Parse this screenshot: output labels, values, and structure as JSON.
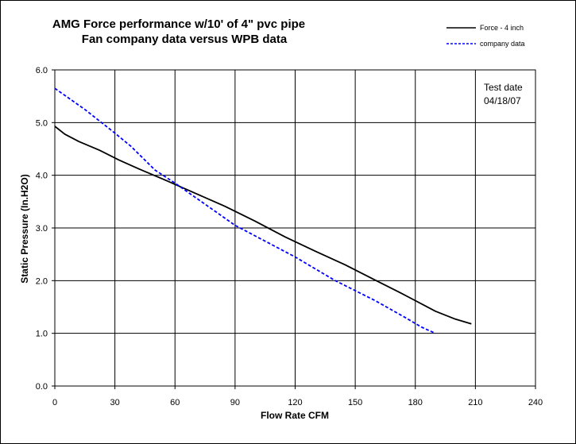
{
  "chart_data": {
    "type": "line",
    "title": [
      "AMG Force performance w/10' of 4\" pvc pipe",
      "Fan company data versus WPB data"
    ],
    "xlabel": "Flow Rate  CFM",
    "ylabel": "Static Pressure  (In.H2O)",
    "xlim": [
      0,
      240
    ],
    "ylim": [
      0,
      6
    ],
    "xticks": [
      "0",
      "30",
      "60",
      "90",
      "120",
      "150",
      "180",
      "210",
      "240"
    ],
    "yticks": [
      "0.0",
      "1.0",
      "2.0",
      "3.0",
      "4.0",
      "5.0",
      "6.0"
    ],
    "grid": true,
    "legend_position": "top-right",
    "annotation": [
      "Test date",
      "04/18/07"
    ],
    "series": [
      {
        "name": "Force - 4 inch",
        "style": "solid",
        "color": "#000000",
        "x": [
          0,
          5,
          12,
          22,
          32,
          42,
          55,
          70,
          85,
          100,
          115,
          130,
          145,
          160,
          172,
          180,
          190,
          200,
          208
        ],
        "y": [
          4.93,
          4.78,
          4.64,
          4.48,
          4.29,
          4.12,
          3.91,
          3.66,
          3.41,
          3.13,
          2.83,
          2.56,
          2.3,
          2.01,
          1.78,
          1.62,
          1.42,
          1.27,
          1.18
        ]
      },
      {
        "name": "company data",
        "style": "dashed",
        "color": "#0000ff",
        "x": [
          0,
          15,
          30,
          38,
          50,
          60,
          75,
          90,
          105,
          120,
          140,
          160,
          175,
          183,
          190
        ],
        "y": [
          5.65,
          5.25,
          4.8,
          4.55,
          4.1,
          3.85,
          3.45,
          3.05,
          2.75,
          2.45,
          2.0,
          1.62,
          1.3,
          1.12,
          1.0
        ]
      }
    ]
  }
}
